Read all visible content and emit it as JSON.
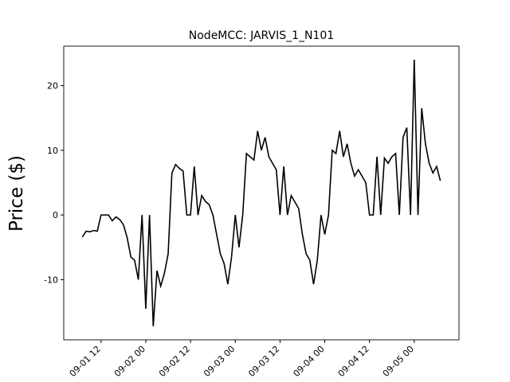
{
  "chart_data": {
    "type": "line",
    "title": "NodeMCC: JARVIS_1_N101",
    "y_label": "Price ($)",
    "x": [
      "09-01 07",
      "09-01 08",
      "09-01 09",
      "09-01 10",
      "09-01 11",
      "09-01 12",
      "09-01 13",
      "09-01 14",
      "09-01 15",
      "09-01 16",
      "09-01 17",
      "09-01 18",
      "09-01 19",
      "09-01 20",
      "09-01 21",
      "09-01 22",
      "09-01 23",
      "09-02 00",
      "09-02 01",
      "09-02 02",
      "09-02 03",
      "09-02 04",
      "09-02 05",
      "09-02 06",
      "09-02 07",
      "09-02 08",
      "09-02 09",
      "09-02 10",
      "09-02 11",
      "09-02 12",
      "09-02 13",
      "09-02 14",
      "09-02 15",
      "09-02 16",
      "09-02 17",
      "09-02 18",
      "09-02 19",
      "09-02 20",
      "09-02 21",
      "09-02 22",
      "09-02 23",
      "09-03 00",
      "09-03 01",
      "09-03 02",
      "09-03 03",
      "09-03 04",
      "09-03 05",
      "09-03 06",
      "09-03 07",
      "09-03 08",
      "09-03 09",
      "09-03 10",
      "09-03 11",
      "09-03 12",
      "09-03 13",
      "09-03 14",
      "09-03 15",
      "09-03 16",
      "09-03 17",
      "09-03 18",
      "09-03 19",
      "09-03 20",
      "09-03 21",
      "09-03 22",
      "09-03 23",
      "09-04 00",
      "09-04 01",
      "09-04 02",
      "09-04 03",
      "09-04 04",
      "09-04 05",
      "09-04 06",
      "09-04 07",
      "09-04 08",
      "09-04 09",
      "09-04 10",
      "09-04 11",
      "09-04 12",
      "09-04 13",
      "09-04 14",
      "09-04 15",
      "09-04 16",
      "09-04 17",
      "09-04 18",
      "09-04 19",
      "09-04 20",
      "09-04 21",
      "09-04 22",
      "09-04 23",
      "09-05 00",
      "09-05 01",
      "09-05 02",
      "09-05 03",
      "09-05 04",
      "09-05 05",
      "09-05 06",
      "09-05 07"
    ],
    "series": [
      {
        "name": "JARVIS_1_N101",
        "color": "#000000",
        "values": [
          -3.4,
          -2.5,
          -2.6,
          -2.4,
          -2.5,
          0,
          0,
          0,
          -0.9,
          -0.3,
          -0.7,
          -1.5,
          -3.5,
          -6.5,
          -7,
          -10,
          0,
          -14.5,
          0,
          -17.2,
          -8.6,
          -11,
          -9,
          -6,
          6.5,
          7.8,
          7.2,
          6.8,
          0,
          0,
          7.5,
          0,
          3,
          2.1,
          1.6,
          0,
          -3,
          -6,
          -7.5,
          -10.7,
          -6.5,
          0,
          -5,
          0,
          9.5,
          9,
          8.5,
          13,
          10,
          12,
          9,
          8,
          7,
          0,
          7.5,
          0,
          3,
          2,
          1,
          -3,
          -6,
          -7,
          -10.7,
          -7,
          0,
          -3,
          0,
          10,
          9.5,
          13,
          9,
          11,
          8,
          6,
          7,
          6,
          5,
          0,
          0,
          9,
          0,
          8.8,
          8,
          9,
          9.5,
          0,
          12,
          13.5,
          0,
          24,
          0,
          16.5,
          11,
          8,
          6.5,
          7.5,
          5.3
        ]
      }
    ],
    "xlim": [
      "09-01 02",
      "09-05 12"
    ],
    "xticks": [
      "09-01 12",
      "09-02 00",
      "09-02 12",
      "09-03 00",
      "09-03 12",
      "09-04 00",
      "09-04 12",
      "09-05 00"
    ],
    "ylim": [
      -19.3,
      26.1
    ],
    "yticks": [
      -10,
      0,
      10,
      20
    ]
  }
}
